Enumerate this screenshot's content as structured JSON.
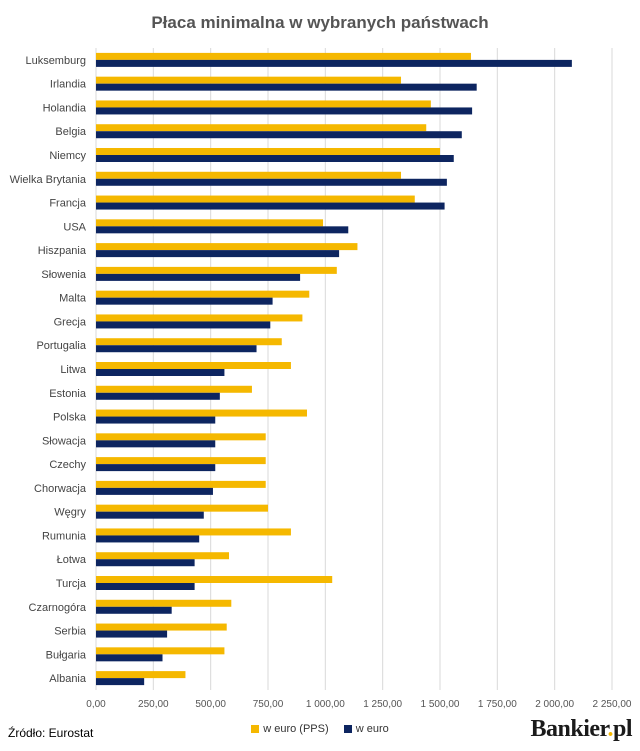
{
  "chart_data": {
    "type": "bar",
    "orientation": "horizontal",
    "title": "Płaca minimalna w wybranych państwach",
    "categories": [
      "Luksemburg",
      "Irlandia",
      "Holandia",
      "Belgia",
      "Niemcy",
      "Wielka Brytania",
      "Francja",
      "USA",
      "Hiszpania",
      "Słowenia",
      "Malta",
      "Grecja",
      "Portugalia",
      "Litwa",
      "Estonia",
      "Polska",
      "Słowacja",
      "Czechy",
      "Chorwacja",
      "Węgry",
      "Rumunia",
      "Łotwa",
      "Turcja",
      "Czarnogóra",
      "Serbia",
      "Bułgaria",
      "Albania"
    ],
    "series": [
      {
        "name": "w euro (PPS)",
        "color": "#f5b800",
        "values": [
          1635,
          1330,
          1460,
          1440,
          1500,
          1330,
          1390,
          990,
          1140,
          1050,
          930,
          900,
          810,
          850,
          680,
          920,
          740,
          740,
          740,
          750,
          850,
          580,
          1030,
          590,
          570,
          560,
          390
        ]
      },
      {
        "name": "w euro",
        "color": "#0d2560",
        "values": [
          2075,
          1660,
          1640,
          1595,
          1560,
          1530,
          1520,
          1100,
          1060,
          890,
          770,
          760,
          700,
          560,
          540,
          520,
          520,
          520,
          510,
          470,
          450,
          430,
          430,
          330,
          310,
          290,
          210
        ]
      }
    ],
    "xlim": [
      0,
      2250
    ],
    "xticks": [
      "0,00",
      "250,00",
      "500,00",
      "750,00",
      "1 000,00",
      "1 250,00",
      "1 500,00",
      "1 750,00",
      "2 000,00",
      "2 250,00"
    ],
    "grid": true,
    "legend_position": "bottom"
  },
  "footer": {
    "source": "Źródło: Eurostat",
    "brand_name": "Bankier",
    "brand_dot": ".",
    "brand_tld": "pl"
  }
}
